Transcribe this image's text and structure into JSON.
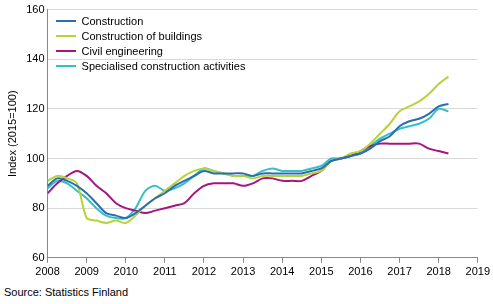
{
  "chart_data": {
    "type": "line",
    "y_label": "Index (2015=100)",
    "source": "Source: Statistics Finland",
    "x": [
      2008.0,
      2008.25,
      2008.5,
      2008.75,
      2009.0,
      2009.25,
      2009.5,
      2009.75,
      2010.0,
      2010.25,
      2010.5,
      2010.75,
      2011.0,
      2011.25,
      2011.5,
      2011.75,
      2012.0,
      2012.25,
      2012.5,
      2012.75,
      2013.0,
      2013.25,
      2013.5,
      2013.75,
      2014.0,
      2014.25,
      2014.5,
      2014.75,
      2015.0,
      2015.25,
      2015.5,
      2015.75,
      2016.0,
      2016.25,
      2016.5,
      2016.75,
      2017.0,
      2017.25,
      2017.5,
      2017.75,
      2018.0,
      2018.25
    ],
    "series": [
      {
        "name": "Construction",
        "color": "#2a6eb0",
        "values": [
          89,
          92,
          91,
          89,
          86,
          82,
          78,
          77,
          76,
          78,
          81,
          84,
          86,
          89,
          91,
          93,
          95,
          94,
          94,
          94,
          94,
          93,
          94,
          94,
          94,
          94,
          94,
          95,
          96,
          99,
          100,
          101,
          102,
          104,
          107,
          109,
          113,
          115,
          116,
          118,
          121,
          122
        ]
      },
      {
        "name": "Construction of buildings",
        "color": "#b6d43a",
        "values": [
          91,
          93,
          92,
          90,
          76,
          75,
          74,
          75,
          74,
          77,
          81,
          84,
          87,
          90,
          93,
          95,
          96,
          95,
          94,
          93,
          93,
          92,
          93,
          93,
          93,
          93,
          93,
          94,
          95,
          99,
          100,
          102,
          103,
          106,
          110,
          114,
          119,
          121,
          123,
          126,
          130,
          133
        ]
      },
      {
        "name": "Civil engineering",
        "color": "#a3167f",
        "values": [
          86,
          90,
          93,
          95,
          93,
          89,
          86,
          82,
          80,
          79,
          78,
          79,
          80,
          81,
          82,
          86,
          89,
          90,
          90,
          90,
          89,
          90,
          92,
          92,
          91,
          91,
          91,
          93,
          95,
          99,
          100,
          101,
          103,
          105,
          106,
          106,
          106,
          106,
          106,
          104,
          103,
          102
        ]
      },
      {
        "name": "Specialised construction activities",
        "color": "#35c0c4",
        "values": [
          88,
          91,
          90,
          87,
          84,
          80,
          77,
          76,
          76,
          80,
          87,
          89,
          87,
          88,
          90,
          93,
          96,
          95,
          94,
          93,
          93,
          93,
          95,
          96,
          95,
          95,
          95,
          96,
          97,
          100,
          100,
          101,
          102,
          105,
          108,
          110,
          112,
          113,
          114,
          116,
          120,
          119
        ]
      }
    ],
    "xlim": [
      2008,
      2019
    ],
    "xticks": [
      2008,
      2009,
      2010,
      2011,
      2012,
      2013,
      2014,
      2015,
      2016,
      2017,
      2018,
      2019
    ],
    "ylim": [
      60,
      160
    ],
    "yticks": [
      60,
      80,
      100,
      120,
      140,
      160
    ],
    "grid": "y",
    "legend": "upper left"
  }
}
